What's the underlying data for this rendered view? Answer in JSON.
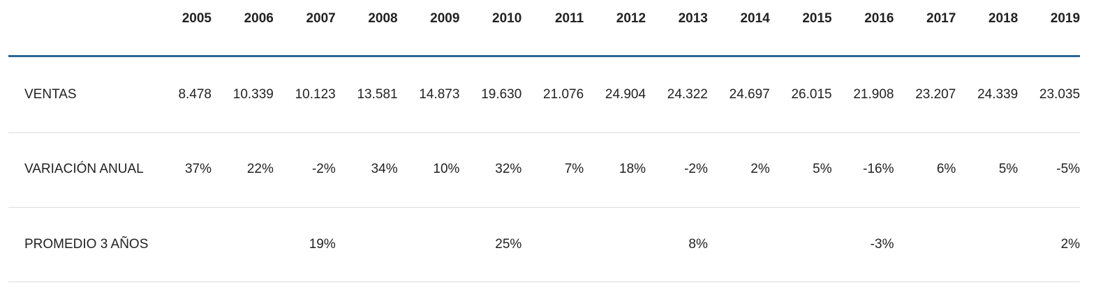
{
  "table": {
    "columns": [
      "2005",
      "2006",
      "2007",
      "2008",
      "2009",
      "2010",
      "2011",
      "2012",
      "2013",
      "2014",
      "2015",
      "2016",
      "2017",
      "2018",
      "2019"
    ],
    "rows": [
      {
        "label": "VENTAS",
        "cells": [
          "8.478",
          "10.339",
          "10.123",
          "13.581",
          "14.873",
          "19.630",
          "21.076",
          "24.904",
          "24.322",
          "24.697",
          "26.015",
          "21.908",
          "23.207",
          "24.339",
          "23.035"
        ]
      },
      {
        "label": "VARIACIÓN ANUAL",
        "cells": [
          "37%",
          "22%",
          "-2%",
          "34%",
          "10%",
          "32%",
          "7%",
          "18%",
          "-2%",
          "2%",
          "5%",
          "-16%",
          "6%",
          "5%",
          "-5%"
        ]
      },
      {
        "label": "PROMEDIO 3 AÑOS",
        "cells": [
          null,
          null,
          "19%",
          null,
          null,
          "25%",
          null,
          null,
          "8%",
          null,
          null,
          "-3%",
          null,
          null,
          "2%"
        ]
      }
    ]
  }
}
